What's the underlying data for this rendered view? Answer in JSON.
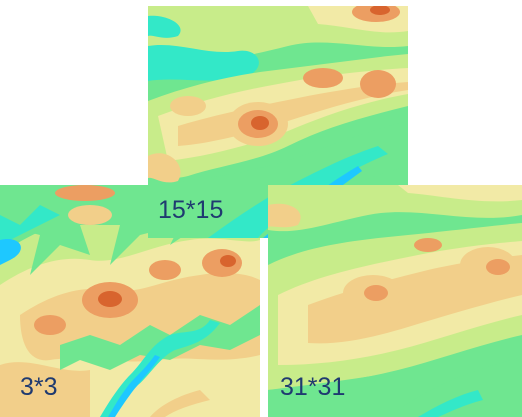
{
  "panels": [
    {
      "id": "panel-3",
      "label": "3*3"
    },
    {
      "id": "panel-15",
      "label": "15*15"
    },
    {
      "id": "panel-31",
      "label": "31*31"
    }
  ],
  "colors": {
    "river": "#1ec8ff",
    "low": "#33e8c8",
    "green": "#6fe690",
    "yellow_green": "#c8ec8a",
    "pale_yellow": "#f2eaa6",
    "tan": "#f2cf8a",
    "orange": "#ec9e62",
    "peak": "#d8642e",
    "label_text": "#1f3a70"
  }
}
